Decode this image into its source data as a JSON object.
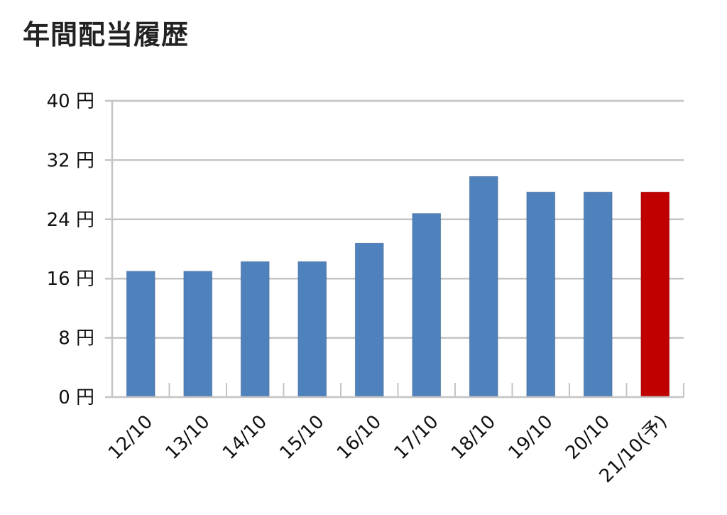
{
  "title": "年間配当履歴",
  "chart_data": {
    "type": "bar",
    "categories": [
      "12/10",
      "13/10",
      "14/10",
      "15/10",
      "16/10",
      "17/10",
      "18/10",
      "19/10",
      "20/10",
      "21/10(予)"
    ],
    "values": [
      17,
      17,
      18.3,
      18.3,
      20.8,
      24.8,
      29.8,
      27.7,
      27.7,
      27.7
    ],
    "bar_colors": [
      "#4f81bd",
      "#4f81bd",
      "#4f81bd",
      "#4f81bd",
      "#4f81bd",
      "#4f81bd",
      "#4f81bd",
      "#4f81bd",
      "#4f81bd",
      "#c00000"
    ],
    "y_ticks": [
      0,
      8,
      16,
      24,
      32,
      40
    ],
    "y_tick_labels": [
      "0 円",
      "8 円",
      "16 円",
      "24 円",
      "32 円",
      "40 円"
    ],
    "ylim": [
      0,
      40
    ],
    "grid": true,
    "legend": "none"
  }
}
